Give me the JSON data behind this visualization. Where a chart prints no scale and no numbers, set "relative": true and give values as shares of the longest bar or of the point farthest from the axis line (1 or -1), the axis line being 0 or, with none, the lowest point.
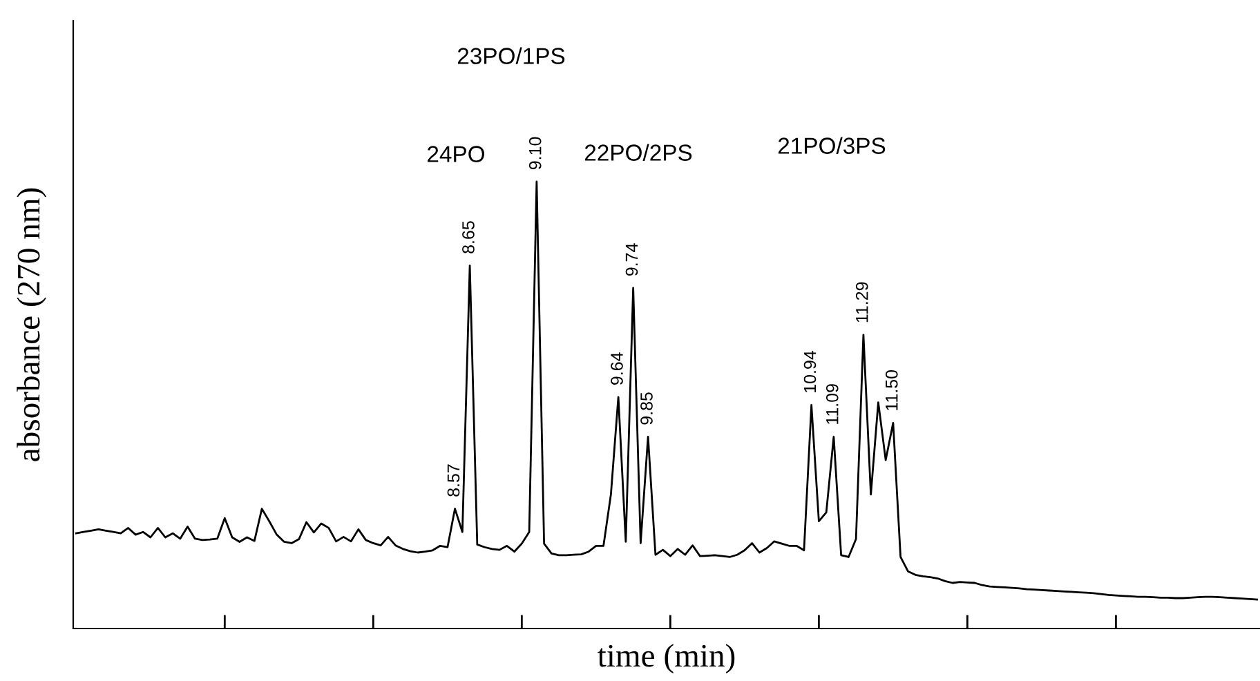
{
  "chart_data": {
    "type": "line",
    "relative": true,
    "xlabel": "time (min)",
    "ylabel": "absorbance (270 nm)",
    "tick_labels": false,
    "line_style": "solid",
    "categories": [
      null,
      null,
      null,
      null,
      null,
      null,
      null,
      null,
      null,
      null,
      null,
      null,
      null,
      null,
      null,
      null,
      null,
      null,
      null,
      null,
      null,
      null,
      null,
      null,
      null,
      null,
      null,
      null,
      null,
      null,
      null,
      null,
      null,
      null,
      null,
      null,
      null,
      null,
      null,
      null,
      null,
      null,
      null,
      null,
      null,
      null,
      null,
      null,
      null,
      null,
      null,
      null,
      null,
      null,
      null,
      null,
      null,
      null,
      null,
      null,
      null,
      null,
      null,
      null,
      null,
      null,
      null,
      null,
      null,
      null,
      null,
      null,
      null,
      null,
      null,
      null,
      null,
      null,
      null,
      null,
      null,
      null,
      null,
      null,
      null,
      null,
      null,
      null,
      null,
      null,
      null,
      null,
      null,
      null,
      null,
      null,
      null,
      null,
      null,
      null,
      null,
      null,
      null,
      null,
      null,
      null,
      null,
      null,
      null,
      null,
      null,
      null,
      null,
      null,
      null,
      null,
      null,
      null,
      null,
      null,
      null,
      null,
      null,
      null,
      null,
      null,
      null,
      null,
      null,
      null,
      null,
      null,
      null,
      null,
      null,
      null,
      null,
      null,
      null,
      null,
      null,
      null,
      null,
      null,
      null,
      null,
      null,
      null,
      null,
      null,
      null,
      null,
      null,
      null,
      null,
      null,
      null,
      null,
      null,
      null
    ],
    "series": [
      {
        "color": "#000000",
        "values": [
          0.213,
          0.216,
          0.219,
          0.222,
          0.219,
          0.216,
          0.213,
          0.225,
          0.21,
          0.216,
          0.204,
          0.225,
          0.204,
          0.213,
          0.201,
          0.228,
          0.201,
          0.198,
          0.199,
          0.201,
          0.247,
          0.204,
          0.194,
          0.204,
          0.196,
          0.268,
          0.24,
          0.21,
          0.194,
          0.191,
          0.2,
          0.238,
          0.215,
          0.235,
          0.225,
          0.195,
          0.205,
          0.195,
          0.222,
          0.198,
          0.191,
          0.186,
          0.205,
          0.186,
          0.178,
          0.173,
          0.17,
          0.172,
          0.175,
          0.185,
          0.182,
          0.268,
          0.216,
          0.812,
          0.188,
          0.182,
          0.178,
          0.176,
          0.185,
          0.172,
          0.19,
          0.216,
          1.0,
          0.19,
          0.168,
          0.164,
          0.164,
          0.165,
          0.166,
          0.172,
          0.185,
          0.185,
          0.3,
          0.518,
          0.194,
          0.762,
          0.191,
          0.429,
          0.165,
          0.176,
          0.162,
          0.178,
          0.165,
          0.186,
          0.162,
          0.163,
          0.164,
          0.162,
          0.16,
          0.165,
          0.175,
          0.191,
          0.17,
          0.18,
          0.195,
          0.19,
          0.185,
          0.185,
          0.175,
          0.5,
          0.24,
          0.26,
          0.429,
          0.164,
          0.16,
          0.2,
          0.657,
          0.3,
          0.506,
          0.377,
          0.46,
          0.16,
          0.128,
          0.12,
          0.117,
          0.115,
          0.112,
          0.106,
          0.102,
          0.104,
          0.103,
          0.102,
          0.097,
          0.094,
          0.093,
          0.092,
          0.091,
          0.09,
          0.088,
          0.087,
          0.086,
          0.085,
          0.084,
          0.083,
          0.082,
          0.081,
          0.08,
          0.079,
          0.077,
          0.075,
          0.074,
          0.073,
          0.072,
          0.071,
          0.071,
          0.07,
          0.069,
          0.069,
          0.068,
          0.068,
          0.069,
          0.07,
          0.071,
          0.071,
          0.07,
          0.069,
          0.068,
          0.067,
          0.066,
          0.065
        ]
      }
    ],
    "annotations": [
      "24PO",
      "23PO/1PS",
      "22PO/2PS",
      "21PO/3PS",
      "8.57",
      "8.65",
      "9.10",
      "9.64",
      "9.74",
      "9.85",
      "10.94",
      "11.09",
      "11.29",
      "11.50"
    ]
  }
}
